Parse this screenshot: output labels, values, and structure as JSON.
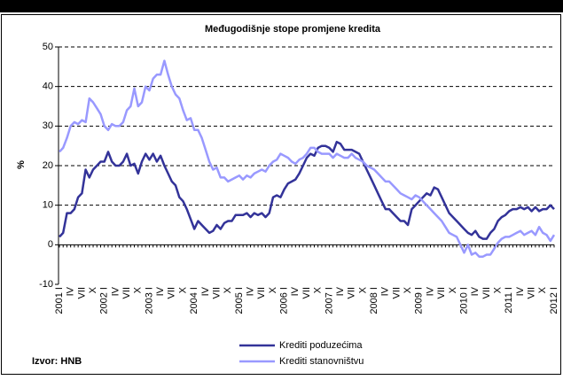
{
  "chart_data": {
    "type": "line",
    "title": "Međugodišnje stope promjene kredita",
    "y_label": "%",
    "source": "Izvor: HNB",
    "categories": [
      "2001 I",
      null,
      null,
      "IV",
      null,
      null,
      "VII",
      null,
      null,
      "X",
      null,
      null,
      "2002 I",
      null,
      null,
      "IV",
      null,
      null,
      "VII",
      null,
      null,
      "X",
      null,
      null,
      "2003 I",
      null,
      null,
      "IV",
      null,
      null,
      "VII",
      null,
      null,
      "X",
      null,
      null,
      "2004 I",
      null,
      null,
      "IV",
      null,
      null,
      "VII",
      null,
      null,
      "X",
      null,
      null,
      "2005 I",
      null,
      null,
      "IV",
      null,
      null,
      "VII",
      null,
      null,
      "X",
      null,
      null,
      "2006 I",
      null,
      null,
      "IV",
      null,
      null,
      "VII",
      null,
      null,
      "X",
      null,
      null,
      "2007 I",
      null,
      null,
      "IV",
      null,
      null,
      "VII",
      null,
      null,
      "X",
      null,
      null,
      "2008 I",
      null,
      null,
      "IV",
      null,
      null,
      "VII",
      null,
      null,
      "X",
      null,
      null,
      "2009 I",
      null,
      null,
      "IV",
      null,
      null,
      "VII",
      null,
      null,
      "X",
      null,
      null,
      "2010 I",
      null,
      null,
      "IV",
      null,
      null,
      "VII",
      null,
      null,
      "X",
      null,
      null,
      "2011 I",
      null,
      null,
      "IV",
      null,
      null,
      "VII",
      null,
      null,
      "X",
      null,
      null,
      "2012 I"
    ],
    "series": [
      {
        "name": "Krediti poduzećima",
        "color": "#333399",
        "values": [
          2,
          3,
          8,
          8,
          9,
          12,
          13,
          19,
          17,
          19,
          20,
          21,
          21,
          23.5,
          21,
          20,
          20,
          21,
          23,
          20,
          20.5,
          18,
          21,
          23,
          21.5,
          23,
          21,
          22.5,
          20,
          18,
          16,
          15,
          12,
          11,
          9,
          6.5,
          4,
          6,
          5,
          4,
          3,
          3.5,
          5,
          4,
          5.5,
          6,
          6,
          7.5,
          7.5,
          7.5,
          8,
          7,
          8,
          7.5,
          8,
          7,
          8,
          12,
          12.5,
          12,
          14,
          15.5,
          16,
          16.5,
          18,
          20,
          22,
          23,
          22.5,
          24.5,
          25,
          25,
          24.5,
          23.5,
          26,
          25.5,
          24,
          24,
          24,
          23.5,
          23,
          21,
          19,
          17,
          15,
          13,
          11,
          9,
          9,
          8,
          7,
          6,
          6,
          5,
          9,
          10,
          11,
          12,
          13,
          12.5,
          14.5,
          14,
          12,
          10,
          8,
          7,
          6,
          5,
          4,
          3,
          2.5,
          3.5,
          2,
          1.5,
          1.5,
          3,
          4,
          6,
          7,
          7.5,
          8.5,
          9,
          9,
          9.5,
          9,
          9.5,
          8.5,
          9.5,
          8.5,
          9,
          9,
          10,
          9
        ]
      },
      {
        "name": "Krediti stanovništvu",
        "color": "#9999ff",
        "values": [
          23.5,
          24.5,
          27,
          30,
          31,
          30.5,
          31.5,
          31,
          37,
          36,
          34.5,
          33,
          30,
          29,
          30.5,
          30,
          30,
          31,
          34,
          35,
          39.5,
          35,
          36,
          40,
          39,
          42,
          43,
          43,
          46.5,
          43,
          40,
          38,
          37,
          34,
          31.5,
          32,
          29,
          29,
          27,
          24,
          21,
          19,
          19.5,
          17,
          17,
          16,
          16.5,
          17,
          17.5,
          16.5,
          17.5,
          17,
          18,
          18.5,
          19,
          18.5,
          20,
          21,
          21.5,
          23,
          22.5,
          22,
          21,
          20.5,
          21.5,
          22,
          23,
          24.5,
          24.5,
          23.5,
          23,
          23,
          23,
          22,
          23,
          22.5,
          22,
          22,
          23,
          22,
          21.5,
          21,
          20,
          19.5,
          19,
          18,
          17,
          16,
          16,
          15,
          14,
          13,
          12.5,
          12,
          11.5,
          12.5,
          12,
          11,
          10,
          9,
          8,
          7,
          6,
          4.5,
          3,
          2.5,
          2,
          0,
          -2,
          0,
          -2.5,
          -2,
          -3,
          -3,
          -2.5,
          -2.5,
          -1,
          0.5,
          1.5,
          2,
          2,
          2.5,
          3,
          3.5,
          2.5,
          3,
          3.5,
          2.5,
          4.5,
          3,
          2.5,
          1,
          2.5
        ]
      }
    ],
    "ylim": [
      -10,
      50
    ],
    "yticks": [
      -10,
      0,
      10,
      20,
      30,
      40,
      50
    ],
    "grid": true
  }
}
